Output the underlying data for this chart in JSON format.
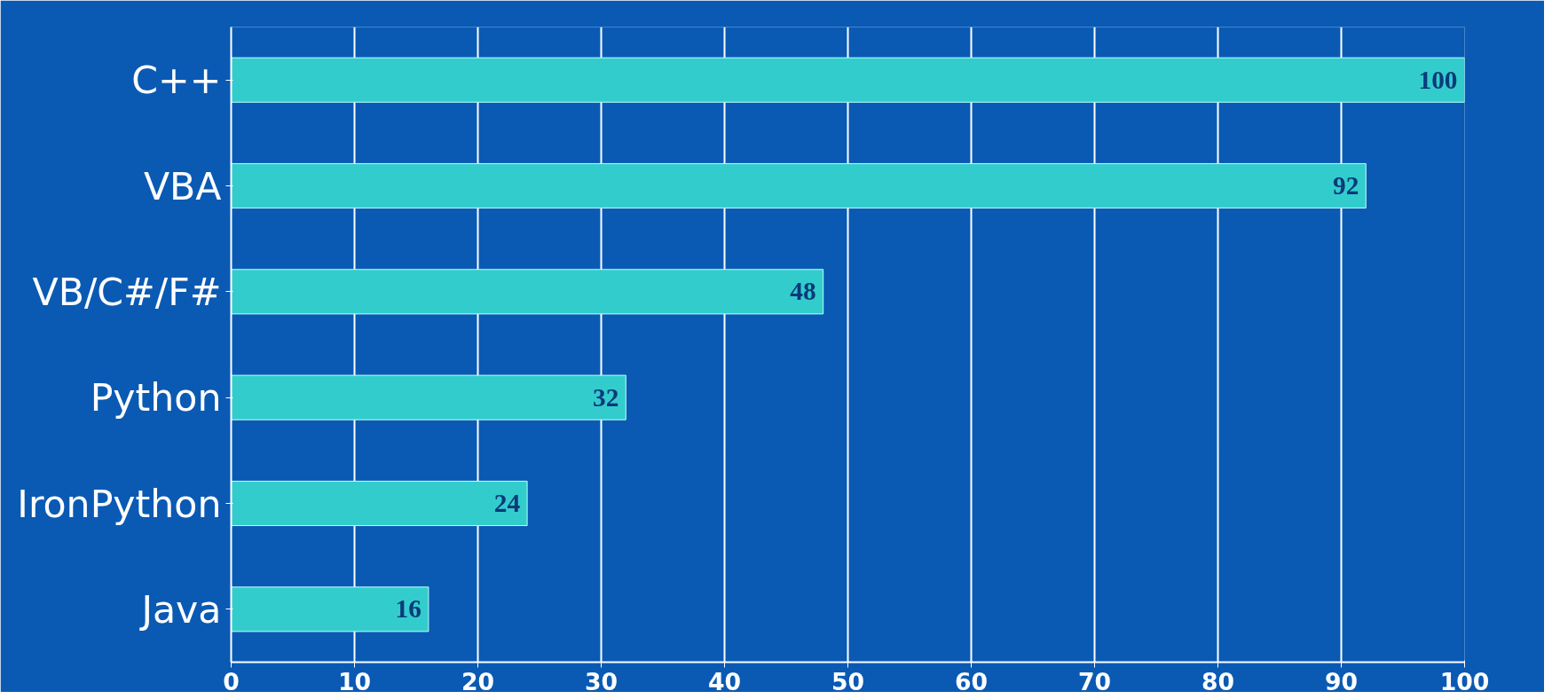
{
  "chart_data": {
    "type": "bar",
    "orientation": "horizontal",
    "categories": [
      "C++",
      "VBA",
      "VB/C#/F#",
      "Python",
      "IronPython",
      "Java"
    ],
    "values": [
      100,
      92,
      48,
      32,
      24,
      16
    ],
    "color": "#33cccc",
    "xlim": [
      0,
      100
    ],
    "xticks": [
      0,
      10,
      20,
      30,
      40,
      50,
      60,
      70,
      80,
      90,
      100
    ],
    "grid": "x",
    "data_labels": true
  }
}
